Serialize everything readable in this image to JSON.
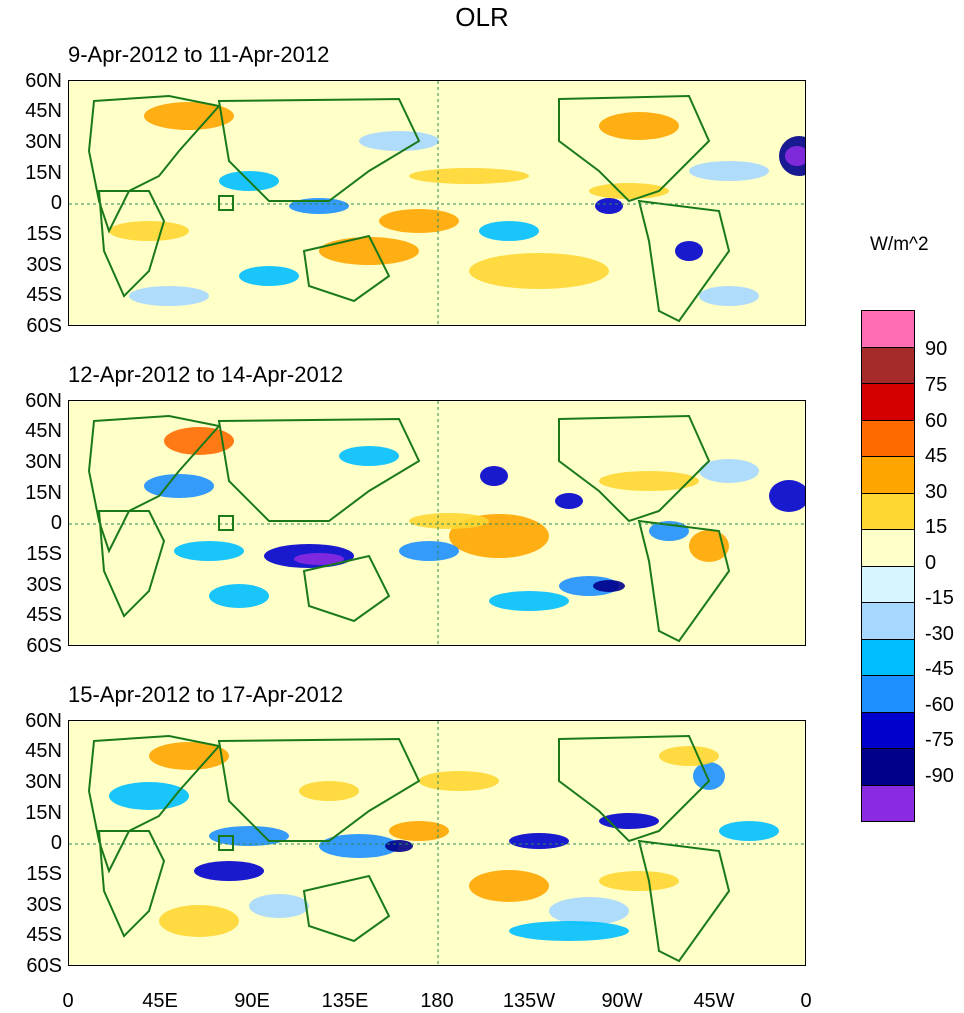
{
  "title": "OLR",
  "units": "W/m^2",
  "panels": [
    {
      "label": "9-Apr-2012 to 11-Apr-2012"
    },
    {
      "label": "12-Apr-2012 to 14-Apr-2012"
    },
    {
      "label": "15-Apr-2012 to 17-Apr-2012"
    }
  ],
  "lat_labels": [
    "60N",
    "45N",
    "30N",
    "15N",
    "0",
    "15S",
    "30S",
    "45S",
    "60S"
  ],
  "lon_labels": [
    "0",
    "45E",
    "90E",
    "135E",
    "180",
    "135W",
    "90W",
    "45W",
    "0"
  ],
  "colorbar": {
    "labels": [
      "90",
      "75",
      "60",
      "45",
      "30",
      "15",
      "0",
      "-15",
      "-30",
      "-45",
      "-60",
      "-75",
      "-90"
    ],
    "colors": [
      "#ff6eb4",
      "#a52a2a",
      "#d40000",
      "#ff6a00",
      "#ffa500",
      "#ffd732",
      "#ffffc8",
      "#d6f5ff",
      "#a6d8ff",
      "#00bfff",
      "#1e90ff",
      "#0000cd",
      "#00008b",
      "#8a2be2"
    ]
  },
  "colors": {
    "coast": "#1a7a1a",
    "guide": "#2e8b57"
  }
}
